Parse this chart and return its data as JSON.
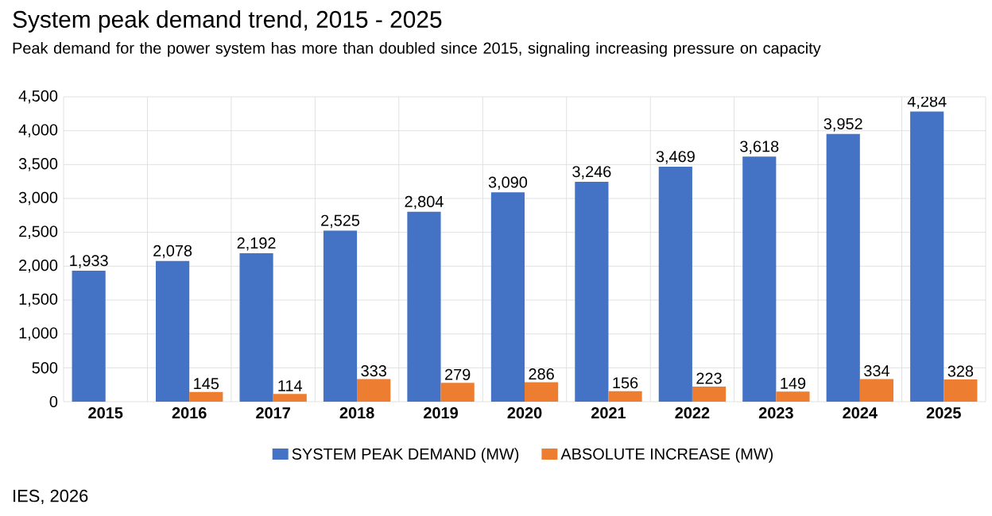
{
  "chart_data": {
    "type": "bar",
    "title": "System peak demand trend, 2015 - 2025",
    "subtitle": "Peak demand for the power system has more than doubled since 2015, signaling increasing pressure on capacity",
    "categories": [
      "2015",
      "2016",
      "2017",
      "2018",
      "2019",
      "2020",
      "2021",
      "2022",
      "2023",
      "2024",
      "2025"
    ],
    "series": [
      {
        "name": "SYSTEM PEAK DEMAND (MW)",
        "color": "#4472c4",
        "values": [
          1933,
          2078,
          2192,
          2525,
          2804,
          3090,
          3246,
          3469,
          3618,
          3952,
          4284
        ],
        "value_labels": [
          "1,933",
          "2,078",
          "2,192",
          "2,525",
          "2,804",
          "3,090",
          "3,246",
          "3,469",
          "3,618",
          "3,952",
          "4,284"
        ]
      },
      {
        "name": "ABSOLUTE INCREASE (MW)",
        "color": "#ed7d31",
        "values": [
          null,
          145,
          114,
          333,
          279,
          286,
          156,
          223,
          149,
          334,
          328
        ],
        "value_labels": [
          null,
          "145",
          "114",
          "333",
          "279",
          "286",
          "156",
          "223",
          "149",
          "334",
          "328"
        ]
      }
    ],
    "ylim": [
      0,
      4500
    ],
    "yticks": [
      0,
      {
        "value": 500,
        "label": "500"
      },
      {
        "value": 1000,
        "label": "1,000"
      },
      {
        "value": 1500,
        "label": "1,500"
      },
      {
        "value": 2000,
        "label": "2,000"
      },
      {
        "value": 2500,
        "label": "2,500"
      },
      {
        "value": 3000,
        "label": "3,000"
      },
      {
        "value": 3500,
        "label": "3,500"
      },
      {
        "value": 4000,
        "label": "4,000"
      },
      {
        "value": 4500,
        "label": "4,500"
      }
    ],
    "grid": true,
    "legend": "bottom",
    "annotations": [
      "IES, 2026"
    ]
  }
}
